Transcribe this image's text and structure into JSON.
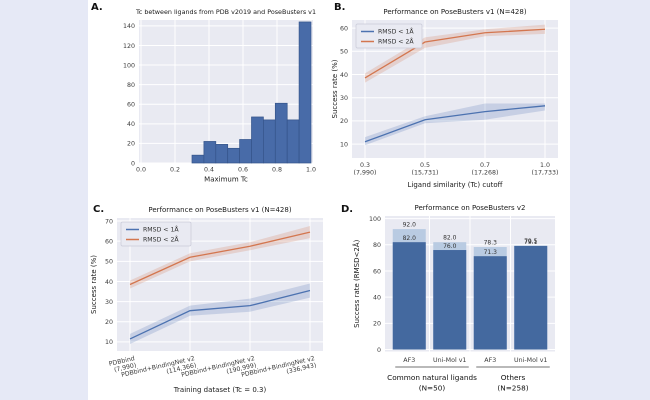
{
  "colors": {
    "canvas_bg": "#e6e9f6",
    "page_bg": "#ffffff",
    "plot_bg": "#e9eaf2",
    "grid": "#ffffff",
    "blue": "#4c72b0",
    "orange": "#d3764f",
    "hist_fill": "#486ba8",
    "hist_edge": "#35548a",
    "bar_dark": "#44699f",
    "bar_light": "#b9cbe2",
    "text_dark": "#1a1a1a",
    "text_tick": "#3b3b3b",
    "legend_border": "#c9cad8",
    "underline": "#444444"
  },
  "chart_data": [
    {
      "panel": "A.",
      "type": "bar",
      "subtype": "histogram",
      "title": "Tc between ligands from PDB v2019 and PoseBusters v1",
      "xlabel": "Maximum Tc",
      "ylabel": "",
      "xlim": [
        0.0,
        1.0
      ],
      "ylim": [
        0,
        146
      ],
      "xticks": [
        0.0,
        0.2,
        0.4,
        0.6,
        0.8,
        1.0
      ],
      "xtick_labels": [
        "0.0",
        "0.2",
        "0.4",
        "0.6",
        "0.8",
        "1.0"
      ],
      "yticks": [
        0,
        20,
        40,
        60,
        80,
        100,
        120,
        140
      ],
      "bin_start": 0.3,
      "bin_width": 0.07,
      "values": [
        8,
        22,
        19,
        15,
        24,
        47,
        44,
        61,
        44,
        144
      ]
    },
    {
      "panel": "B.",
      "type": "line",
      "title": "Performance on PoseBusters v1 (N=428)",
      "xlabel": "Ligand similarity (Tc) cutoff",
      "ylabel": "Success rate (%)",
      "ylim": [
        4,
        63.5
      ],
      "yticks": [
        10,
        20,
        30,
        40,
        50,
        60
      ],
      "categories": [
        [
          "0.3",
          "(7,990)"
        ],
        [
          "0.5",
          "(15,731)"
        ],
        [
          "0.7",
          "(17,268)"
        ],
        [
          "1.0",
          "(17,733)"
        ]
      ],
      "legend_position": "upper-left",
      "series": [
        {
          "name": "RMSD < 1Å",
          "color_key": "blue",
          "values": [
            11,
            20.5,
            24,
            26.5
          ],
          "lower": [
            9.5,
            19,
            20.5,
            24.5
          ],
          "upper": [
            13,
            22,
            27.5,
            27.5
          ]
        },
        {
          "name": "RMSD < 2Å",
          "color_key": "orange",
          "values": [
            38.5,
            54,
            58,
            59.5
          ],
          "lower": [
            36.5,
            51.5,
            56.5,
            57.5
          ],
          "upper": [
            40.5,
            56,
            59.5,
            61.5
          ]
        }
      ]
    },
    {
      "panel": "C.",
      "type": "line",
      "title": "Performance on PoseBusters v1 (N=428)",
      "xlabel": "Training dataset (Tc = 0.3)",
      "ylabel": "Success rate (%)",
      "ylim": [
        5.5,
        71.5
      ],
      "yticks": [
        10,
        20,
        30,
        40,
        50,
        60,
        70
      ],
      "categories": [
        [
          "PDBbind",
          "(7,990)"
        ],
        [
          "PDBbind+BindingNet v2",
          "(114,366)"
        ],
        [
          "PDBbind+BindingNet v2",
          "(190,999)"
        ],
        [
          "PDBbind+BindingNet v2",
          "(336,943)"
        ]
      ],
      "legend_position": "upper-left",
      "series": [
        {
          "name": "RMSD < 1Å",
          "color_key": "blue",
          "values": [
            11.5,
            25.5,
            28,
            35.5
          ],
          "lower": [
            9,
            23,
            25,
            32
          ],
          "upper": [
            14,
            28,
            31.5,
            39
          ]
        },
        {
          "name": "RMSD < 2Å",
          "color_key": "orange",
          "values": [
            38.5,
            52,
            57.5,
            64.5
          ],
          "lower": [
            36.5,
            50,
            55.5,
            61.5
          ],
          "upper": [
            40.5,
            54,
            59.5,
            67.5
          ]
        }
      ]
    },
    {
      "panel": "D.",
      "type": "bar",
      "title": "Performance on PoseBusters v2",
      "xlabel": "",
      "ylabel": "Success rate (RMSD<2Å)",
      "ylim": [
        -1.5,
        102
      ],
      "yticks": [
        0,
        20,
        40,
        60,
        80,
        100
      ],
      "groups": [
        {
          "label_lines": [
            "Common natural ligands",
            "(N=50)"
          ],
          "bars": [
            {
              "name": "AF3",
              "total": 92.0,
              "dark": 82.0,
              "total_label": "92.0",
              "dark_label": "82.0"
            },
            {
              "name": "Uni-Mol v1",
              "total": 82.0,
              "dark": 76.0,
              "total_label": "82.0",
              "dark_label": "76.0"
            }
          ]
        },
        {
          "label_lines": [
            "Others",
            "(N=258)"
          ],
          "bars": [
            {
              "name": "AF3",
              "total": 78.3,
              "dark": 71.3,
              "total_label": "78.3",
              "dark_label": "71.3"
            },
            {
              "name": "Uni-Mol v1",
              "total": 79.5,
              "dark": 79.1,
              "total_label": "79.5",
              "dark_label": "79.1"
            }
          ]
        }
      ]
    }
  ]
}
